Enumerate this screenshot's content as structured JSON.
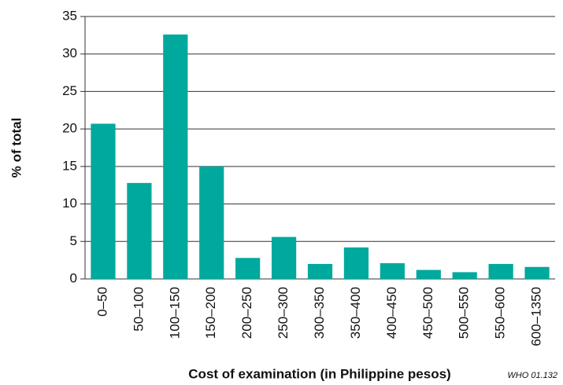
{
  "chart_data": {
    "type": "bar",
    "xlabel": "Cost of examination (in Philippine pesos)",
    "ylabel": "% of total",
    "note": "WHO 01.132",
    "categories": [
      "0–50",
      "50–100",
      "100–150",
      "150–200",
      "200–250",
      "250–300",
      "300–350",
      "350–400",
      "400–450",
      "450–500",
      "500–550",
      "550–600",
      "600–1350"
    ],
    "values": [
      20.7,
      12.8,
      32.6,
      15.0,
      2.8,
      5.6,
      2.0,
      4.2,
      2.1,
      1.2,
      0.9,
      2.0,
      1.6
    ],
    "color": "#00a99d",
    "ylim": [
      0,
      35
    ],
    "yticks": [
      0,
      5,
      10,
      15,
      20,
      25,
      30,
      35
    ],
    "grid": true
  }
}
